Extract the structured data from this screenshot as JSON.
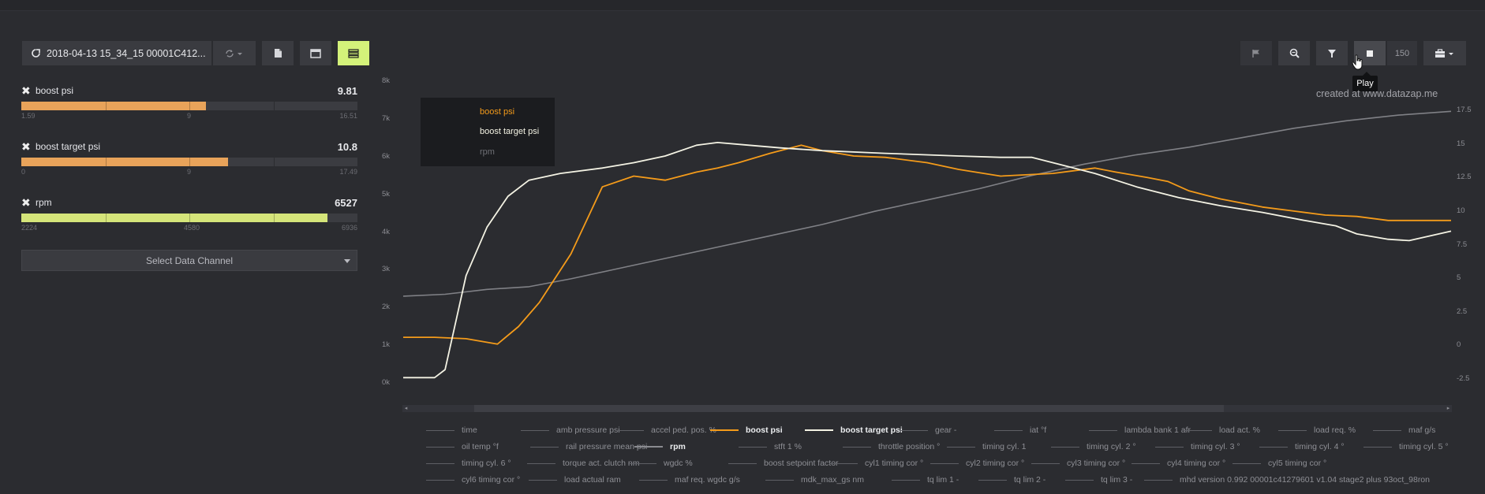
{
  "toolbar": {
    "file_label": "2018-04-13 15_34_15 00001C412...",
    "stop_tooltip": "Play",
    "points_value": "150"
  },
  "watermark": "created at www.datazap.me",
  "channels": [
    {
      "name": "boost psi",
      "value": "9.81",
      "min": "1.59",
      "mid": "9",
      "max": "16.51",
      "fill_fraction": 0.55,
      "color": "#e8a35a"
    },
    {
      "name": "boost target psi",
      "value": "10.8",
      "min": "0",
      "mid": "9",
      "max": "17.49",
      "fill_fraction": 0.615,
      "color": "#e8a35a"
    },
    {
      "name": "rpm",
      "value": "6527",
      "min": "2224",
      "mid": "4580",
      "max": "6936",
      "fill_fraction": 0.91,
      "color": "#d5e57a"
    }
  ],
  "select_channel_label": "Select Data Channel",
  "chart_data": {
    "type": "line",
    "left_axis_ticks": [
      "8k",
      "7k",
      "6k",
      "5k",
      "4k",
      "3k",
      "2k",
      "1k",
      "0k"
    ],
    "right_axis_ticks": [
      "17.5",
      "15",
      "12.5",
      "10",
      "7.5",
      "5",
      "2.5",
      "0",
      "-2.5"
    ],
    "left_ylim": [
      0,
      8000
    ],
    "right_ylim": [
      -2.5,
      17.5
    ],
    "legend": {
      "entries": [
        "boost psi",
        "boost target psi",
        "rpm"
      ],
      "placement": "top-left"
    },
    "series": [
      {
        "name": "boost psi",
        "axis": "right",
        "color": "#f49b1a",
        "x": [
          0,
          3,
          6,
          9,
          11,
          13,
          16,
          19,
          22,
          25,
          28,
          30,
          32,
          35,
          38,
          40,
          43,
          46,
          50,
          53,
          57,
          62,
          66,
          68,
          71,
          73,
          75,
          78,
          82,
          85,
          88,
          91,
          94,
          100
        ],
        "values": [
          0.6,
          0.6,
          0.5,
          0.1,
          1.4,
          3.2,
          6.8,
          11.8,
          12.6,
          12.3,
          12.9,
          13.2,
          13.6,
          14.3,
          14.9,
          14.5,
          14.1,
          14.0,
          13.6,
          13.1,
          12.6,
          12.8,
          13.2,
          12.9,
          12.5,
          12.2,
          11.5,
          10.9,
          10.3,
          10.0,
          9.7,
          9.6,
          9.3,
          9.3
        ]
      },
      {
        "name": "boost target psi",
        "axis": "right",
        "color": "#f4f3e4",
        "x": [
          0,
          3,
          4,
          6,
          8,
          10,
          12,
          15,
          19,
          22,
          25,
          28,
          30,
          33,
          36,
          40,
          46,
          53,
          57,
          60,
          63,
          66,
          70,
          74,
          78,
          82,
          86,
          89,
          91,
          94,
          96,
          100
        ],
        "values": [
          -2.4,
          -2.4,
          -1.8,
          5.2,
          8.8,
          11.1,
          12.3,
          12.8,
          13.2,
          13.6,
          14.1,
          14.9,
          15.1,
          14.9,
          14.7,
          14.5,
          14.3,
          14.1,
          14.0,
          14.0,
          13.4,
          12.8,
          11.8,
          11.0,
          10.4,
          9.9,
          9.3,
          8.9,
          8.3,
          7.9,
          7.8,
          8.5
        ]
      },
      {
        "name": "rpm",
        "axis": "left",
        "color": "#808186",
        "x": [
          0,
          4,
          8,
          12,
          16,
          20,
          25,
          30,
          35,
          40,
          45,
          50,
          55,
          60,
          65,
          70,
          75,
          80,
          85,
          90,
          95,
          100
        ],
        "values": [
          2300,
          2350,
          2480,
          2550,
          2760,
          3000,
          3300,
          3600,
          3900,
          4200,
          4550,
          4850,
          5150,
          5500,
          5800,
          6050,
          6250,
          6500,
          6750,
          6950,
          7100,
          7200
        ]
      }
    ]
  },
  "channel_list": [
    [
      {
        "label": "time",
        "style": "normal"
      },
      {
        "label": "amb pressure psi",
        "style": "normal"
      },
      {
        "label": "accel ped. pos. %",
        "style": "normal"
      },
      {
        "label": "boost psi",
        "style": "orange"
      },
      {
        "label": "boost target psi",
        "style": "white"
      },
      {
        "label": "gear -",
        "style": "normal"
      },
      {
        "label": "iat °f",
        "style": "normal"
      },
      {
        "label": "lambda bank 1 afr",
        "style": "normal"
      },
      {
        "label": "load act. %",
        "style": "normal"
      },
      {
        "label": "load req. %",
        "style": "normal"
      },
      {
        "label": "maf g/s",
        "style": "normal"
      }
    ],
    [
      {
        "label": "oil temp °f",
        "style": "normal"
      },
      {
        "label": "rail pressure mean psi",
        "style": "normal"
      },
      {
        "label": "rpm",
        "style": "gray"
      },
      {
        "label": "stft 1 %",
        "style": "normal"
      },
      {
        "label": "throttle position °",
        "style": "normal"
      },
      {
        "label": "timing cyl. 1",
        "style": "normal"
      },
      {
        "label": "timing cyl. 2 °",
        "style": "normal"
      },
      {
        "label": "timing cyl. 3 °",
        "style": "normal"
      },
      {
        "label": "timing cyl. 4 °",
        "style": "normal"
      },
      {
        "label": "timing cyl. 5 °",
        "style": "normal"
      }
    ],
    [
      {
        "label": "timing cyl. 6 °",
        "style": "normal"
      },
      {
        "label": "torque act. clutch nm",
        "style": "normal"
      },
      {
        "label": "wgdc %",
        "style": "normal"
      },
      {
        "label": "boost setpoint factor",
        "style": "normal"
      },
      {
        "label": "cyl1 timing cor °",
        "style": "normal"
      },
      {
        "label": "cyl2 timing cor °",
        "style": "normal"
      },
      {
        "label": "cyl3 timing cor °",
        "style": "normal"
      },
      {
        "label": "cyl4 timing cor °",
        "style": "normal"
      },
      {
        "label": "cyl5 timing cor °",
        "style": "normal"
      }
    ],
    [
      {
        "label": "cyl6 timing cor °",
        "style": "normal"
      },
      {
        "label": "load actual ram",
        "style": "normal"
      },
      {
        "label": "maf req. wgdc g/s",
        "style": "normal"
      },
      {
        "label": "mdk_max_gs nm",
        "style": "normal"
      },
      {
        "label": "tq lim 1 -",
        "style": "normal"
      },
      {
        "label": "tq lim 2 -",
        "style": "normal"
      },
      {
        "label": "tq lim 3 -",
        "style": "normal"
      },
      {
        "label": "mhd version 0.992 00001c41279601 v1.04 stage2 plus 93oct_98ron",
        "style": "normal"
      }
    ]
  ]
}
